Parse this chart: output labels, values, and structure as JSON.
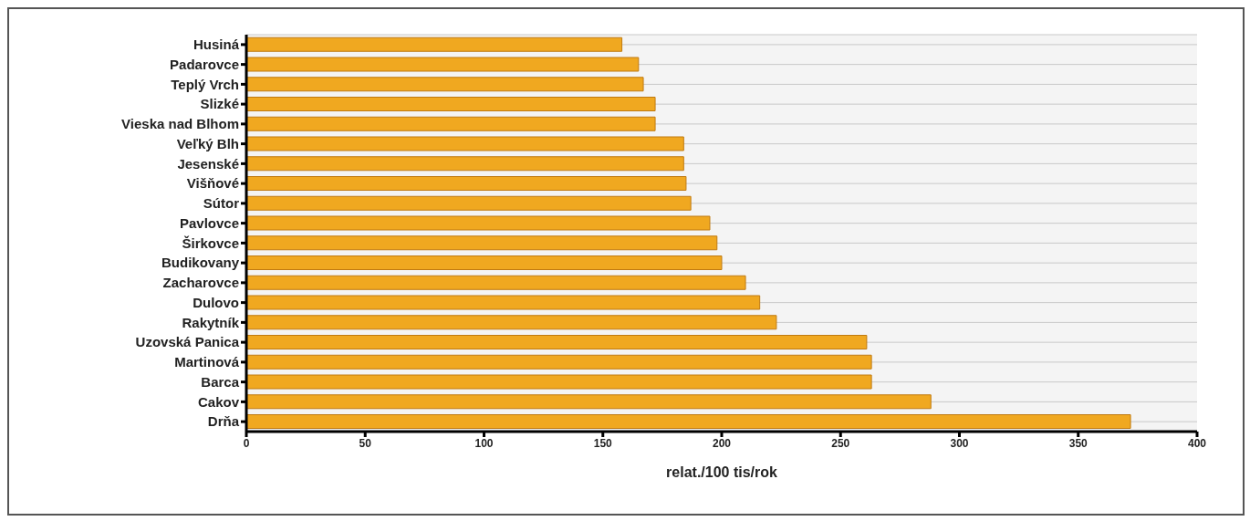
{
  "chart_data": {
    "type": "bar",
    "orientation": "horizontal",
    "xlabel": "relat./100 tis/rok",
    "categories": [
      "Husiná",
      "Padarovce",
      "Teplý Vrch",
      "Slizké",
      "Vieska nad Blhom",
      "Veľký Blh",
      "Jesenské",
      "Višňové",
      "Sútor",
      "Pavlovce",
      "Širkovce",
      "Budikovany",
      "Zacharovce",
      "Dulovo",
      "Rakytník",
      "Uzovská Panica",
      "Martinová",
      "Barca",
      "Cakov",
      "Drňa"
    ],
    "values": [
      158,
      165,
      167,
      172,
      172,
      184,
      184,
      185,
      187,
      195,
      198,
      200,
      210,
      216,
      223,
      261,
      263,
      263,
      288,
      372
    ],
    "color": "#f0a820",
    "xlim": [
      0,
      400
    ],
    "xticks": [
      0,
      50,
      100,
      150,
      200,
      250,
      300,
      350,
      400
    ],
    "grid": "y"
  }
}
